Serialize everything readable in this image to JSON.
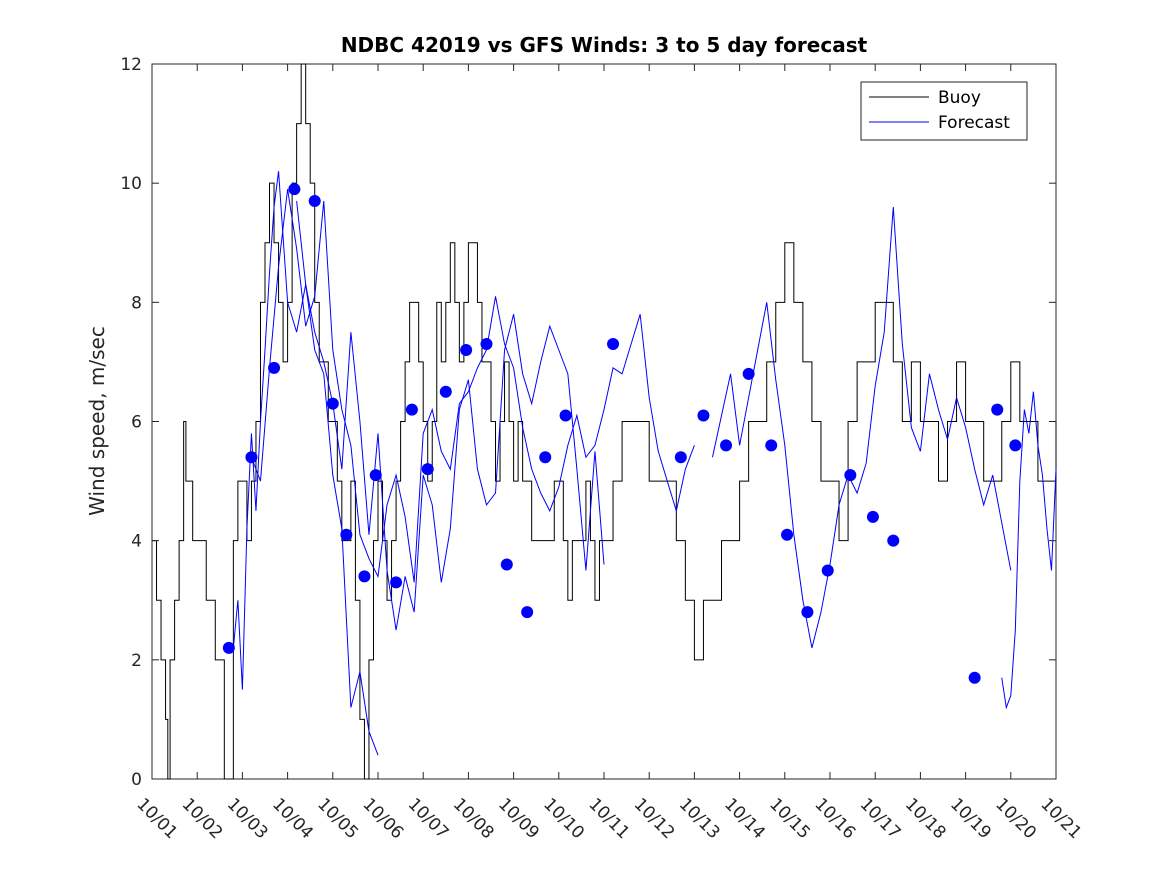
{
  "chart_data": {
    "type": "line",
    "title": "NDBC 42019 vs GFS Winds: 3 to 5 day forecast",
    "xlabel": "",
    "ylabel": "Wind speed, m/sec",
    "xlim": [
      0,
      20
    ],
    "ylim": [
      0,
      12
    ],
    "yticks": [
      0,
      2,
      4,
      6,
      8,
      10,
      12
    ],
    "x_tick_labels": [
      "10/01",
      "10/02",
      "10/03",
      "10/04",
      "10/05",
      "10/06",
      "10/07",
      "10/08",
      "10/09",
      "10/10",
      "10/11",
      "10/12",
      "10/13",
      "10/14",
      "10/15",
      "10/16",
      "10/17",
      "10/18",
      "10/19",
      "10/20",
      "10/21"
    ],
    "legend": {
      "position": "top-right",
      "entries": [
        "Buoy",
        "Forecast"
      ]
    },
    "colors": {
      "buoy": "#000000",
      "forecast": "#0000ff",
      "markers": "#0000ff"
    },
    "buoy": {
      "name": "Buoy",
      "x": [
        0,
        0.1,
        0.2,
        0.3,
        0.35,
        0.4,
        0.5,
        0.6,
        0.7,
        0.75,
        0.8,
        0.9,
        1.0,
        1.1,
        1.2,
        1.4,
        1.6,
        1.8,
        1.9,
        2.0,
        2.1,
        2.2,
        2.3,
        2.4,
        2.5,
        2.6,
        2.7,
        2.8,
        2.9,
        3.0,
        3.1,
        3.2,
        3.3,
        3.4,
        3.5,
        3.6,
        3.7,
        3.8,
        3.9,
        4.0,
        4.1,
        4.2,
        4.3,
        4.4,
        4.5,
        4.6,
        4.7,
        4.8,
        4.9,
        5.0,
        5.1,
        5.2,
        5.3,
        5.4,
        5.5,
        5.6,
        5.7,
        5.8,
        5.9,
        6.0,
        6.1,
        6.2,
        6.3,
        6.4,
        6.5,
        6.6,
        6.7,
        6.8,
        6.9,
        7.0,
        7.1,
        7.2,
        7.3,
        7.4,
        7.5,
        7.6,
        7.7,
        7.8,
        7.9,
        8.0,
        8.1,
        8.2,
        8.3,
        8.4,
        8.5,
        8.6,
        8.7,
        8.8,
        8.9,
        9.0,
        9.1,
        9.2,
        9.3,
        9.4,
        9.5,
        9.6,
        9.7,
        9.8,
        9.9,
        10.0,
        10.2,
        10.4,
        10.6,
        10.8,
        11.0,
        11.2,
        11.4,
        11.6,
        11.8,
        12.0,
        12.2,
        12.4,
        12.6,
        12.8,
        13.0,
        13.2,
        13.4,
        13.6,
        13.8,
        14.0,
        14.2,
        14.4,
        14.6,
        14.8,
        15.0,
        15.2,
        15.4,
        15.6,
        15.8,
        16.0,
        16.2,
        16.4,
        16.6,
        16.8,
        17.0,
        17.2,
        17.4,
        17.6,
        17.8,
        18.0,
        18.2,
        18.4,
        18.6,
        18.8,
        19.0,
        19.2,
        19.4,
        19.6,
        19.8,
        20.0
      ],
      "y": [
        4,
        3,
        2,
        1,
        0,
        2,
        3,
        4,
        6,
        5,
        5,
        4,
        4,
        4,
        3,
        2,
        0,
        4,
        5,
        5,
        4,
        5,
        6,
        8,
        9,
        10,
        9,
        8,
        7,
        8,
        10,
        11,
        12,
        11,
        10,
        8,
        7,
        7,
        6,
        6,
        5,
        4,
        4,
        5,
        3,
        1,
        0,
        2,
        4,
        5,
        4,
        3,
        4,
        5,
        6,
        7,
        8,
        8,
        7,
        6,
        5,
        6,
        8,
        7,
        8,
        9,
        8,
        7,
        8,
        9,
        9,
        8,
        7,
        7,
        6,
        5,
        6,
        7,
        6,
        5,
        6,
        5,
        5,
        4,
        4,
        4,
        4,
        4,
        5,
        5,
        4,
        3,
        4,
        4,
        4,
        5,
        4,
        3,
        4,
        4,
        5,
        6,
        6,
        6,
        5,
        5,
        5,
        4,
        3,
        2,
        3,
        3,
        4,
        4,
        5,
        6,
        6,
        7,
        8,
        9,
        8,
        7,
        6,
        5,
        5,
        4,
        6,
        7,
        7,
        8,
        8,
        7,
        6,
        7,
        6,
        6,
        5,
        6,
        7,
        6,
        6,
        5,
        5,
        6,
        7,
        6,
        6,
        5,
        5,
        6
      ]
    },
    "forecast_runs": [
      {
        "x": [
          1.8,
          1.9,
          2.0,
          2.1,
          2.2,
          2.3,
          2.4,
          2.5,
          2.6,
          2.7,
          2.8,
          2.9,
          3.0,
          3.2,
          3.4,
          3.6,
          3.8,
          4.0,
          4.2,
          4.4,
          4.6,
          4.8,
          5.0
        ],
        "y": [
          2.2,
          3.0,
          1.5,
          4.2,
          5.8,
          4.5,
          6.0,
          7.2,
          8.5,
          9.6,
          10.2,
          9.1,
          8.0,
          7.5,
          8.3,
          7.2,
          6.8,
          5.1,
          4.2,
          1.2,
          1.8,
          0.8,
          0.4
        ]
      },
      {
        "x": [
          2.2,
          2.4,
          2.6,
          2.8,
          3.0,
          3.2,
          3.4,
          3.6,
          3.8,
          4.0,
          4.2,
          4.4,
          4.6,
          4.8,
          5.0,
          5.2,
          5.4,
          5.6,
          5.8,
          6.0,
          6.2,
          6.4,
          6.6,
          6.8,
          7.0,
          7.2,
          7.4,
          7.6,
          7.8,
          8.0,
          8.2,
          8.4,
          8.6,
          8.8,
          9.0,
          9.2,
          9.4,
          9.6,
          9.8,
          10.0,
          10.2,
          10.4,
          10.6,
          10.8,
          11.0,
          11.2,
          11.4,
          11.6,
          11.8,
          12.0
        ],
        "y": [
          5.4,
          5.0,
          6.9,
          8.6,
          9.9,
          8.9,
          7.6,
          8.1,
          9.7,
          7.2,
          6.2,
          5.6,
          4.1,
          3.7,
          3.4,
          4.6,
          5.1,
          4.4,
          3.3,
          5.8,
          6.2,
          5.5,
          5.2,
          6.3,
          6.5,
          6.9,
          7.2,
          8.1,
          7.3,
          6.9,
          5.9,
          5.2,
          4.8,
          4.5,
          4.9,
          5.6,
          6.1,
          5.4,
          5.6,
          6.2,
          6.9,
          6.8,
          7.3,
          7.8,
          6.4,
          5.5,
          5.0,
          4.5,
          5.2,
          5.6
        ]
      },
      {
        "x": [
          3.2,
          3.4,
          3.6,
          3.8,
          4.0,
          4.2,
          4.4,
          4.6,
          4.8,
          5.0,
          5.2,
          5.4,
          5.6,
          5.8,
          6.0,
          6.2,
          6.4,
          6.6,
          6.8,
          7.0,
          7.2,
          7.4,
          7.6,
          7.8,
          8.0,
          8.2,
          8.4,
          8.6,
          8.8,
          9.0,
          9.2,
          9.4,
          9.6,
          9.8,
          10.0
        ],
        "y": [
          9.7,
          8.3,
          7.5,
          7.0,
          6.3,
          5.2,
          7.5,
          6.0,
          4.1,
          5.8,
          3.5,
          2.5,
          3.4,
          2.8,
          5.1,
          4.6,
          3.3,
          4.2,
          6.2,
          6.7,
          5.2,
          4.6,
          4.8,
          7.2,
          7.8,
          6.8,
          6.3,
          7.0,
          7.6,
          7.2,
          6.8,
          5.2,
          3.5,
          5.5,
          3.6
        ]
      },
      {
        "x": [
          12.4,
          12.6,
          12.8,
          13.0,
          13.2,
          13.4,
          13.6,
          13.8,
          14.0,
          14.2,
          14.4,
          14.6,
          14.8,
          15.0,
          15.2,
          15.4,
          15.6,
          15.8,
          16.0,
          16.2,
          16.4,
          16.6,
          16.8,
          17.0,
          17.2,
          17.4,
          17.6,
          17.8,
          18.0,
          18.2,
          18.4,
          18.6,
          18.8,
          19.0
        ],
        "y": [
          5.4,
          6.1,
          6.8,
          5.6,
          6.4,
          7.2,
          8.0,
          6.7,
          5.6,
          4.1,
          3.0,
          2.2,
          2.8,
          3.6,
          4.6,
          5.1,
          4.8,
          5.3,
          6.6,
          7.5,
          9.6,
          7.3,
          5.9,
          5.5,
          6.8,
          6.2,
          5.7,
          6.4,
          5.9,
          5.2,
          4.6,
          5.1,
          4.3,
          3.5
        ]
      },
      {
        "x": [
          18.8,
          18.9,
          19.0,
          19.1,
          19.2,
          19.3,
          19.4,
          19.5,
          19.6,
          19.7,
          19.8,
          19.9,
          20.0
        ],
        "y": [
          1.7,
          1.2,
          1.4,
          2.5,
          5.0,
          6.2,
          5.8,
          6.5,
          5.6,
          5.1,
          4.2,
          3.5,
          5.2
        ]
      }
    ],
    "forecast_markers": {
      "x": [
        1.7,
        2.2,
        2.7,
        3.15,
        3.6,
        4.0,
        4.3,
        4.7,
        4.95,
        5.4,
        5.75,
        6.1,
        6.5,
        6.95,
        7.4,
        7.85,
        8.3,
        8.7,
        9.15,
        10.2,
        11.7,
        12.2,
        12.7,
        13.2,
        13.7,
        14.05,
        14.5,
        14.95,
        15.45,
        15.95,
        16.4,
        18.2,
        18.7,
        19.1
      ],
      "y": [
        2.2,
        5.4,
        6.9,
        9.9,
        9.7,
        6.3,
        4.1,
        3.4,
        5.1,
        3.3,
        6.2,
        5.2,
        6.5,
        7.2,
        7.3,
        3.6,
        2.8,
        5.4,
        6.1,
        7.3,
        5.4,
        6.1,
        5.6,
        6.8,
        5.6,
        4.1,
        2.8,
        3.5,
        5.1,
        4.4,
        4.0,
        1.7,
        6.2,
        5.6
      ]
    }
  }
}
